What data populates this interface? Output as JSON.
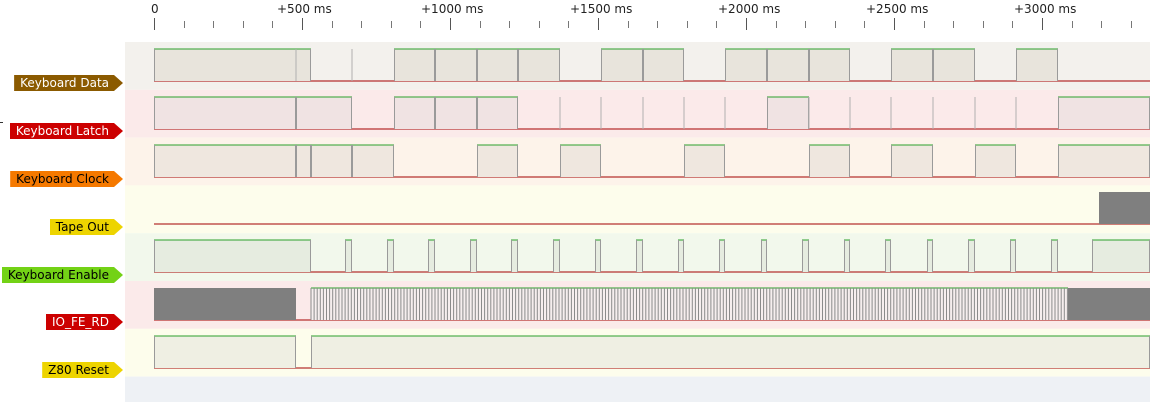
{
  "ruler": {
    "labels": [
      {
        "text": "0"
      },
      {
        "text": "+500 ms"
      },
      {
        "text": "+1000 ms"
      },
      {
        "text": "+1500 ms"
      },
      {
        "text": "+2000 ms"
      },
      {
        "text": "+2500 ms"
      },
      {
        "text": "+3000 ms"
      }
    ]
  },
  "signals": [
    {
      "name": "Keyboard Data",
      "color": "#8b5a00",
      "text_color": "#ffffff",
      "row_bg": "#f3f1ed",
      "fill": "#e8e4dc"
    },
    {
      "name": "Keyboard Latch",
      "color": "#cc0000",
      "text_color": "#ffffff",
      "row_bg": "#fbeaea",
      "fill": "#f0e3e3"
    },
    {
      "name": "Keyboard Clock",
      "color": "#f57900",
      "text_color": "#000000",
      "row_bg": "#fdf3ea",
      "fill": "#efe7df"
    },
    {
      "name": "Tape Out",
      "color": "#edd400",
      "text_color": "#000000",
      "row_bg": "#fdfdec",
      "fill": "#efefe3"
    },
    {
      "name": "Keyboard Enable",
      "color": "#73d216",
      "text_color": "#000000",
      "row_bg": "#f2f8ec",
      "fill": "#e6ece0"
    },
    {
      "name": "IO_FE_RD",
      "color": "#cc0000",
      "text_color": "#ffffff",
      "row_bg": "#fbeaea",
      "fill": "#f0e3e3"
    },
    {
      "name": "Z80 Reset",
      "color": "#edd400",
      "text_color": "#000000",
      "row_bg": "#fdfdec",
      "fill": "#efefe3"
    }
  ],
  "colors": {
    "high_line": "#2ca02c",
    "low_line": "#a40000",
    "dense": "#7f7f7f",
    "empty_row": "#eef1f5"
  }
}
